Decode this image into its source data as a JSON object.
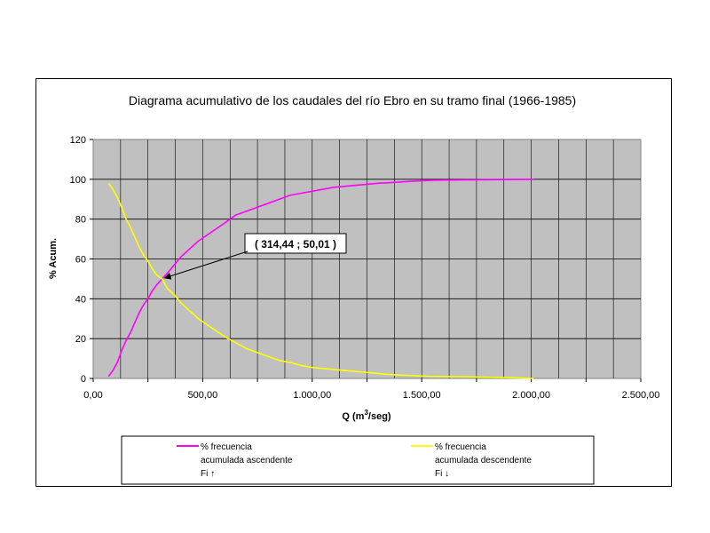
{
  "chart_data": {
    "type": "line",
    "title": "Diagrama acumulativo de los caudales del río Ebro en su tramo final (1966-1985)",
    "xlabel_main": "Q (m",
    "xlabel_sup": "3",
    "xlabel_tail": "/seg)",
    "ylabel": "% Acum.",
    "xlim": [
      0,
      2500
    ],
    "ylim": [
      0,
      120
    ],
    "x_ticks": [
      0,
      250,
      500,
      750,
      1000,
      1250,
      1500,
      1750,
      2000,
      2250,
      2500
    ],
    "x_tick_labels": [
      "0,00",
      "",
      "500,00",
      "",
      "1.000,00",
      "",
      "1.500,00",
      "",
      "2.000,00",
      "",
      "2.500,00"
    ],
    "y_ticks": [
      0,
      20,
      40,
      60,
      80,
      100,
      120
    ],
    "y_tick_labels": [
      "0",
      "20",
      "40",
      "60",
      "80",
      "100",
      "120"
    ],
    "grid": true,
    "series": [
      {
        "name": "% frecuencia acumulada ascendente Fi ↑",
        "color": "#ff00ff",
        "points": [
          [
            70,
            1
          ],
          [
            90,
            4
          ],
          [
            110,
            8
          ],
          [
            130,
            14
          ],
          [
            150,
            19
          ],
          [
            170,
            23
          ],
          [
            190,
            28
          ],
          [
            210,
            33
          ],
          [
            230,
            37
          ],
          [
            250,
            40
          ],
          [
            270,
            44
          ],
          [
            290,
            47
          ],
          [
            314.44,
            50.01
          ],
          [
            340,
            53
          ],
          [
            370,
            57
          ],
          [
            400,
            61
          ],
          [
            440,
            65
          ],
          [
            480,
            69
          ],
          [
            520,
            72
          ],
          [
            560,
            75
          ],
          [
            600,
            78
          ],
          [
            650,
            82
          ],
          [
            700,
            84
          ],
          [
            750,
            86
          ],
          [
            800,
            88
          ],
          [
            850,
            90
          ],
          [
            900,
            92
          ],
          [
            950,
            93
          ],
          [
            1000,
            94
          ],
          [
            1050,
            95
          ],
          [
            1100,
            96
          ],
          [
            1150,
            96.5
          ],
          [
            1200,
            97
          ],
          [
            1250,
            97.5
          ],
          [
            1300,
            98
          ],
          [
            1350,
            98.3
          ],
          [
            1400,
            98.6
          ],
          [
            1450,
            99
          ],
          [
            1500,
            99.3
          ],
          [
            1550,
            99.5
          ],
          [
            1600,
            99.6
          ],
          [
            1700,
            99.7
          ],
          [
            1800,
            99.8
          ],
          [
            1900,
            99.9
          ],
          [
            2010,
            100
          ]
        ]
      },
      {
        "name": "% frecuencia acumulada descendente Fi ↓",
        "color": "#ffff00",
        "points": [
          [
            70,
            98
          ],
          [
            90,
            95
          ],
          [
            110,
            91
          ],
          [
            130,
            86
          ],
          [
            150,
            80
          ],
          [
            170,
            76
          ],
          [
            190,
            71
          ],
          [
            210,
            66
          ],
          [
            230,
            62
          ],
          [
            250,
            59
          ],
          [
            270,
            55
          ],
          [
            290,
            52
          ],
          [
            314.44,
            49.99
          ],
          [
            340,
            45
          ],
          [
            370,
            42
          ],
          [
            400,
            38
          ],
          [
            440,
            34
          ],
          [
            480,
            30
          ],
          [
            520,
            27
          ],
          [
            560,
            24
          ],
          [
            600,
            21
          ],
          [
            650,
            18
          ],
          [
            700,
            15
          ],
          [
            750,
            13
          ],
          [
            800,
            11
          ],
          [
            850,
            9
          ],
          [
            900,
            8
          ],
          [
            950,
            6.5
          ],
          [
            1000,
            5.5
          ],
          [
            1050,
            5
          ],
          [
            1100,
            4.5
          ],
          [
            1150,
            4
          ],
          [
            1200,
            3.5
          ],
          [
            1250,
            3
          ],
          [
            1300,
            2.5
          ],
          [
            1350,
            2
          ],
          [
            1400,
            1.7
          ],
          [
            1450,
            1.5
          ],
          [
            1500,
            1.2
          ],
          [
            1550,
            1
          ],
          [
            1600,
            0.9
          ],
          [
            1700,
            0.8
          ],
          [
            1800,
            0.6
          ],
          [
            1900,
            0.4
          ],
          [
            2010,
            0
          ]
        ]
      }
    ],
    "annotation": {
      "text": "( 314,44 ; 50,01 )",
      "x": 314.44,
      "y": 50.01
    },
    "legend": {
      "placement": "bottom",
      "items": [
        {
          "line1": "% frecuencia",
          "line2": "acumulada ascendente",
          "line3": "Fi ↑",
          "color": "#ff00ff"
        },
        {
          "line1": "% frecuencia",
          "line2": "acumulada descendente",
          "line3": "Fi ↓",
          "color": "#ffff00"
        }
      ]
    }
  }
}
